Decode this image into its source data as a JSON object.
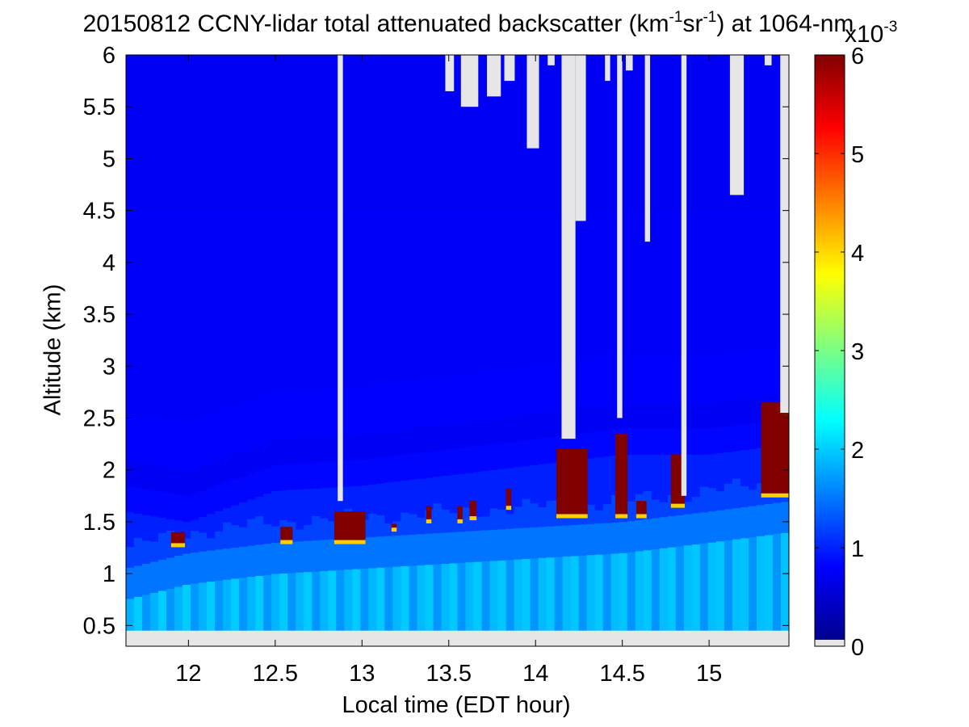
{
  "chart_data": {
    "type": "heatmap",
    "title_parts": {
      "prefix": "20150812 CCNY-lidar total attenuated backscatter (km",
      "sup1": "-1",
      "mid": "sr",
      "sup2": "-1",
      "suffix": ") at 1064-nm"
    },
    "xlabel": "Local time (EDT hour)",
    "ylabel": "Altitude (km)",
    "xlim": [
      11.64,
      15.46
    ],
    "ylim": [
      0.3,
      6.0
    ],
    "data_ylim": [
      0.45,
      6.0
    ],
    "xticks": [
      12,
      12.5,
      13,
      13.5,
      14,
      14.5,
      15
    ],
    "xtick_labels": [
      "12",
      "12.5",
      "13",
      "13.5",
      "14",
      "14.5",
      "15"
    ],
    "yticks": [
      0.5,
      1,
      1.5,
      2,
      2.5,
      3,
      3.5,
      4,
      4.5,
      5,
      5.5,
      6
    ],
    "ytick_labels": [
      "0.5",
      "1",
      "1.5",
      "2",
      "2.5",
      "3",
      "3.5",
      "4",
      "4.5",
      "5",
      "5.5",
      "6"
    ],
    "colorbar": {
      "colormap": "jet",
      "clim": [
        0,
        0.006
      ],
      "ticks": [
        0,
        1,
        2,
        3,
        4,
        5,
        6
      ],
      "tick_labels": [
        "0",
        "1",
        "2",
        "3",
        "4",
        "5",
        "6"
      ],
      "exponent_base": "x10",
      "exponent_power": "-3",
      "invalid_color": "#e6e6e6"
    },
    "features": {
      "boundary_layer_top_km": [
        [
          11.64,
          1.2
        ],
        [
          12.0,
          1.35
        ],
        [
          12.5,
          1.45
        ],
        [
          13.0,
          1.5
        ],
        [
          13.5,
          1.55
        ],
        [
          14.0,
          1.6
        ],
        [
          14.5,
          1.65
        ],
        [
          15.0,
          1.75
        ],
        [
          15.46,
          1.85
        ]
      ],
      "elevated_layer_km": [
        [
          11.64,
          2.05
        ],
        [
          12.0,
          1.95
        ],
        [
          12.5,
          2.25
        ],
        [
          13.0,
          2.3
        ],
        [
          13.5,
          2.4
        ],
        [
          14.0,
          2.5
        ],
        [
          14.5,
          2.6
        ],
        [
          15.0,
          2.6
        ],
        [
          15.46,
          2.7
        ]
      ],
      "clouds": [
        {
          "t0": 11.9,
          "t1": 11.98,
          "base_km": 1.27,
          "top_km": 1.4
        },
        {
          "t0": 12.53,
          "t1": 12.6,
          "base_km": 1.3,
          "top_km": 1.45
        },
        {
          "t0": 12.84,
          "t1": 13.02,
          "base_km": 1.3,
          "top_km": 1.6
        },
        {
          "t0": 13.17,
          "t1": 13.2,
          "base_km": 1.42,
          "top_km": 1.48
        },
        {
          "t0": 13.37,
          "t1": 13.4,
          "base_km": 1.5,
          "top_km": 1.65
        },
        {
          "t0": 13.55,
          "t1": 13.58,
          "base_km": 1.5,
          "top_km": 1.65
        },
        {
          "t0": 13.62,
          "t1": 13.66,
          "base_km": 1.53,
          "top_km": 1.7
        },
        {
          "t0": 13.83,
          "t1": 13.86,
          "base_km": 1.63,
          "top_km": 1.82
        },
        {
          "t0": 14.12,
          "t1": 14.3,
          "base_km": 1.55,
          "top_km": 2.2
        },
        {
          "t0": 14.46,
          "t1": 14.53,
          "base_km": 1.55,
          "top_km": 2.35
        },
        {
          "t0": 14.58,
          "t1": 14.64,
          "base_km": 1.55,
          "top_km": 1.7
        },
        {
          "t0": 14.78,
          "t1": 14.86,
          "base_km": 1.65,
          "top_km": 2.15
        },
        {
          "t0": 15.3,
          "t1": 15.46,
          "base_km": 1.75,
          "top_km": 2.65
        }
      ],
      "no_signal_above_clouds": [
        {
          "t0": 12.86,
          "t1": 12.89,
          "from_km": 1.7
        },
        {
          "t0": 13.48,
          "t1": 13.53,
          "from_km": 5.65
        },
        {
          "t0": 13.57,
          "t1": 13.67,
          "from_km": 5.5
        },
        {
          "t0": 13.72,
          "t1": 13.8,
          "from_km": 5.6
        },
        {
          "t0": 13.82,
          "t1": 13.88,
          "from_km": 5.75
        },
        {
          "t0": 13.95,
          "t1": 14.02,
          "from_km": 5.1
        },
        {
          "t0": 14.07,
          "t1": 14.11,
          "from_km": 5.9
        },
        {
          "t0": 14.15,
          "t1": 14.23,
          "from_km": 2.3
        },
        {
          "t0": 14.23,
          "t1": 14.29,
          "from_km": 4.4
        },
        {
          "t0": 14.4,
          "t1": 14.43,
          "from_km": 5.75
        },
        {
          "t0": 14.47,
          "t1": 14.5,
          "from_km": 2.5
        },
        {
          "t0": 14.52,
          "t1": 14.56,
          "from_km": 5.85
        },
        {
          "t0": 14.63,
          "t1": 14.66,
          "from_km": 4.2
        },
        {
          "t0": 14.84,
          "t1": 14.87,
          "from_km": 1.75
        },
        {
          "t0": 15.12,
          "t1": 15.2,
          "from_km": 4.65
        },
        {
          "t0": 15.32,
          "t1": 15.36,
          "from_km": 5.9
        },
        {
          "t0": 15.41,
          "t1": 15.46,
          "from_km": 2.55
        }
      ]
    }
  }
}
